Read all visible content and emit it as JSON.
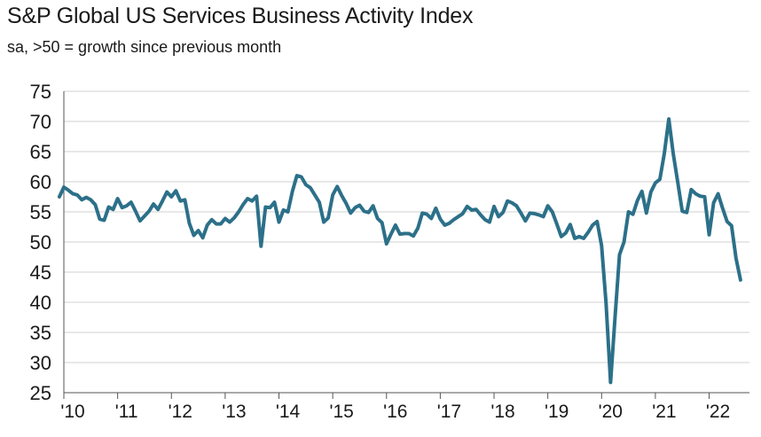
{
  "chart_data": {
    "type": "line",
    "title": "S&P Global US Services Business Activity Index",
    "subtitle": "sa, >50 = growth since previous month",
    "xlabel": "",
    "ylabel": "",
    "ylim": [
      25,
      75
    ],
    "yticks": [
      25,
      30,
      35,
      40,
      45,
      50,
      55,
      60,
      65,
      70,
      75
    ],
    "xlim": [
      2010.0,
      2022.75
    ],
    "xticks": [
      {
        "value": 2010,
        "label": "'10"
      },
      {
        "value": 2011,
        "label": "'11"
      },
      {
        "value": 2012,
        "label": "'12"
      },
      {
        "value": 2013,
        "label": "'13"
      },
      {
        "value": 2014,
        "label": "'14"
      },
      {
        "value": 2015,
        "label": "'15"
      },
      {
        "value": 2016,
        "label": "'16"
      },
      {
        "value": 2017,
        "label": "'17"
      },
      {
        "value": 2018,
        "label": "'18"
      },
      {
        "value": 2019,
        "label": "'19"
      },
      {
        "value": 2020,
        "label": "'20"
      },
      {
        "value": 2021,
        "label": "'21"
      },
      {
        "value": 2022,
        "label": "'22"
      }
    ],
    "grid": {
      "horizontal": true,
      "vertical": false
    },
    "line_color": "#2c7089",
    "grid_color": "#d0d0d0",
    "series": [
      {
        "name": "S&P Global US Services Business Activity Index",
        "start": "2009-12",
        "values": [
          57.5,
          59.1,
          58.6,
          58.0,
          57.8,
          57.0,
          57.4,
          57.0,
          56.2,
          53.8,
          53.6,
          55.8,
          55.4,
          57.2,
          55.7,
          56.0,
          56.6,
          55.1,
          53.5,
          54.3,
          55.1,
          56.3,
          55.4,
          56.8,
          58.3,
          57.5,
          58.5,
          56.8,
          57.0,
          53.1,
          51.1,
          51.9,
          50.7,
          52.8,
          53.7,
          53.0,
          53.0,
          53.9,
          53.3,
          54.0,
          55.0,
          56.2,
          57.2,
          56.8,
          57.6,
          49.3,
          55.8,
          55.7,
          56.6,
          53.3,
          55.3,
          55.0,
          58.4,
          61.0,
          60.8,
          59.5,
          59.0,
          57.8,
          56.6,
          53.3,
          54.0,
          57.8,
          59.2,
          57.7,
          56.4,
          54.8,
          55.7,
          56.1,
          55.1,
          54.9,
          56.0,
          53.9,
          53.2,
          49.7,
          51.3,
          52.8,
          51.3,
          51.4,
          51.4,
          51.0,
          52.3,
          54.8,
          54.6,
          53.9,
          55.6,
          53.8,
          52.8,
          53.1,
          53.7,
          54.2,
          54.7,
          55.9,
          55.3,
          55.4,
          54.5,
          53.7,
          53.3,
          55.9,
          54.2,
          54.9,
          56.8,
          56.5,
          56.0,
          54.8,
          53.5,
          54.8,
          54.7,
          54.5,
          54.2,
          56.0,
          55.0,
          53.0,
          50.9,
          51.5,
          52.9,
          50.6,
          50.9,
          50.6,
          51.6,
          52.8,
          53.4,
          49.4,
          39.8,
          26.7,
          37.5,
          47.9,
          50.0,
          55.0,
          54.6,
          56.9,
          58.4,
          54.8,
          58.3,
          59.8,
          60.4,
          64.7,
          70.4,
          64.6,
          59.9,
          55.1,
          54.9,
          58.7,
          58.0,
          57.6,
          57.5,
          51.2,
          56.5,
          58.0,
          55.6,
          53.4,
          52.7,
          47.3,
          43.7
        ]
      }
    ]
  }
}
